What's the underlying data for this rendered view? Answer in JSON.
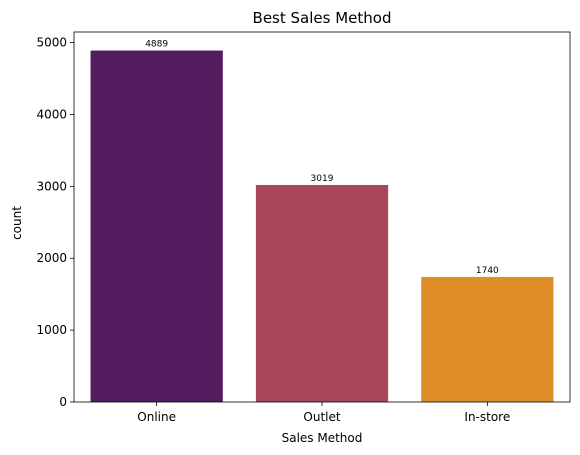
{
  "chart_data": {
    "type": "bar",
    "title": "Best Sales Method",
    "xlabel": "Sales Method",
    "ylabel": "count",
    "categories": [
      "Online",
      "Outlet",
      "In-store"
    ],
    "values": [
      4889,
      3019,
      1740
    ],
    "data_labels": [
      "4889",
      "3019",
      "1740"
    ],
    "colors": [
      "#521c5e",
      "#a9475b",
      "#df8e28"
    ],
    "ylim": [
      0,
      5147
    ],
    "yticks": [
      0,
      1000,
      2000,
      3000,
      4000,
      5000
    ],
    "ytick_labels": [
      "0",
      "1000",
      "2000",
      "3000",
      "4000",
      "5000"
    ],
    "grid": false,
    "legend": "none"
  }
}
